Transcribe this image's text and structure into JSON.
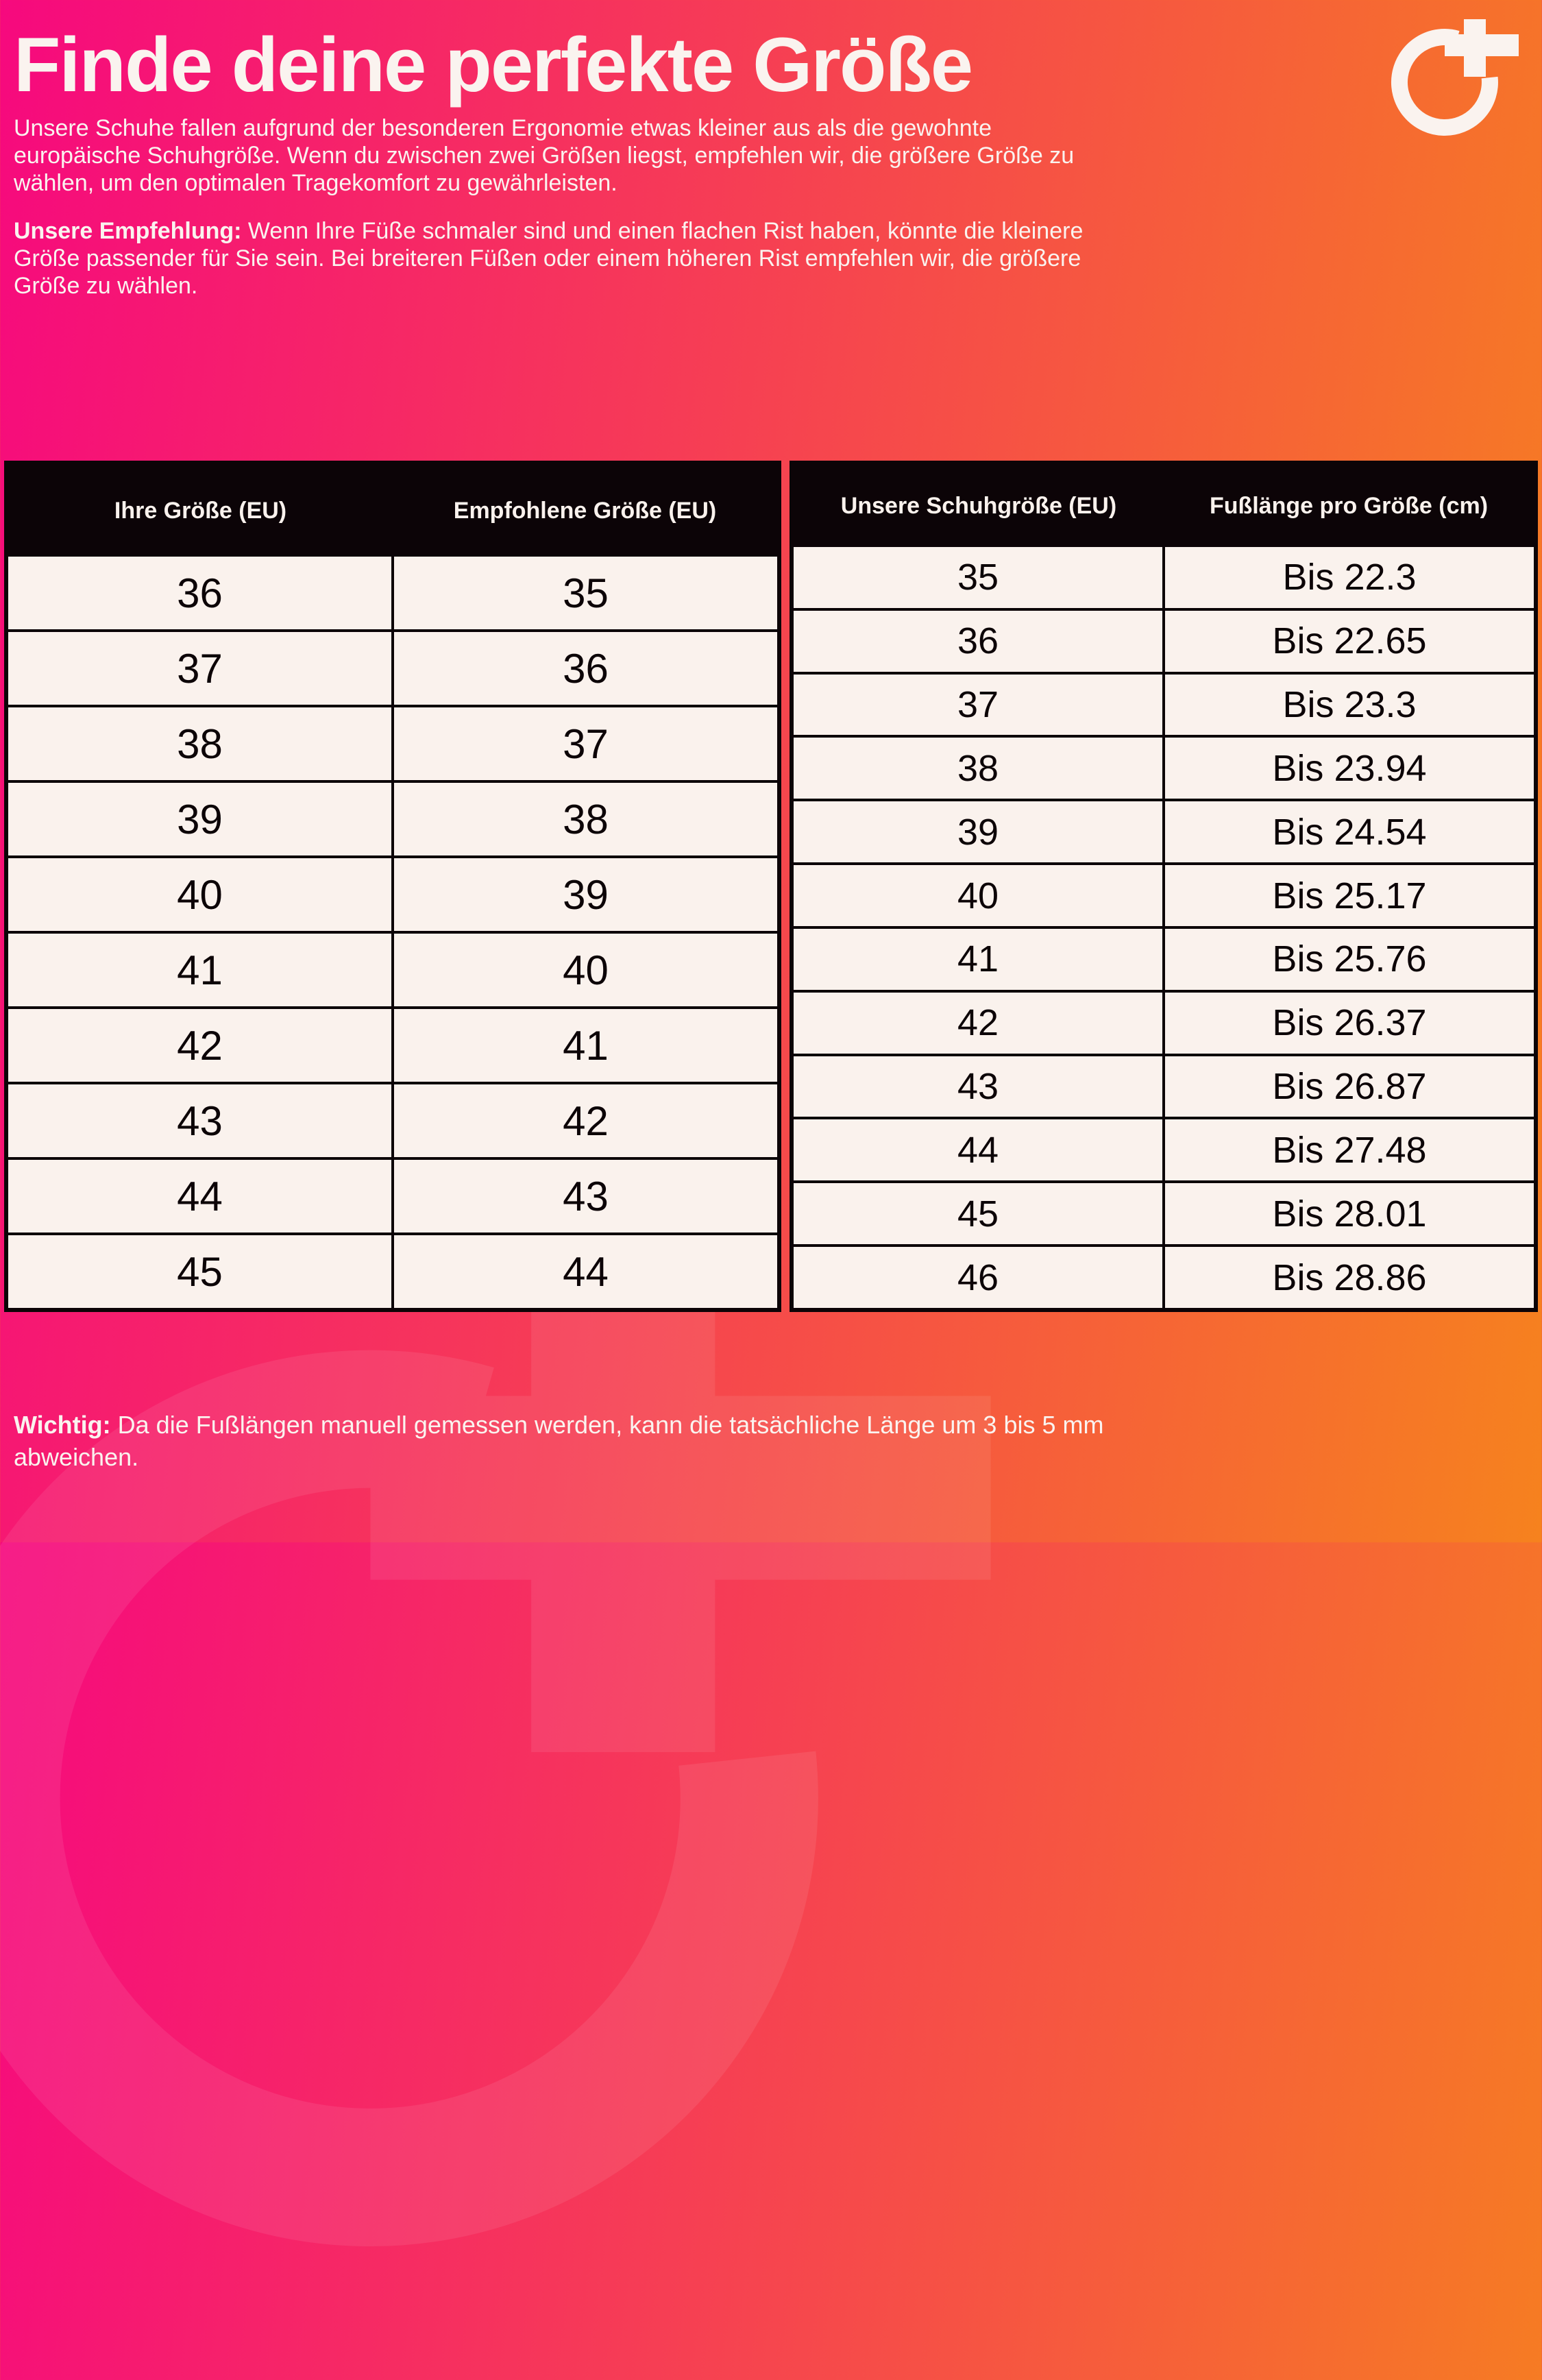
{
  "header": {
    "title": "Finde deine perfekte Größe",
    "logo_name": "o-plus-logo"
  },
  "intro": "Unsere Schuhe fallen aufgrund der besonderen Ergonomie etwas kleiner aus als die gewohnte europäische Schuhgröße. Wenn du zwischen zwei Größen liegst, empfehlen wir, die größere Größe zu wählen, um den optimalen Tragekomfort zu gewährleisten.",
  "recommendation": {
    "label": "Unsere Empfehlung:",
    "text": " Wenn Ihre Füße schmaler sind und einen flachen Rist haben, könnte die kleinere Größe passender für Sie sein. Bei breiteren Füßen oder einem höheren Rist empfehlen wir, die größere Größe zu wählen."
  },
  "tables": {
    "size_conversion": {
      "headers": [
        "Ihre Größe (EU)",
        "Empfohlene Größe (EU)"
      ],
      "rows": [
        [
          "36",
          "35"
        ],
        [
          "37",
          "36"
        ],
        [
          "38",
          "37"
        ],
        [
          "39",
          "38"
        ],
        [
          "40",
          "39"
        ],
        [
          "41",
          "40"
        ],
        [
          "42",
          "41"
        ],
        [
          "43",
          "42"
        ],
        [
          "44",
          "43"
        ],
        [
          "45",
          "44"
        ]
      ]
    },
    "foot_length": {
      "headers": [
        "Unsere Schuhgröße (EU)",
        "Fußlänge pro Größe (cm)"
      ],
      "rows": [
        [
          "35",
          "Bis 22.3"
        ],
        [
          "36",
          "Bis 22.65"
        ],
        [
          "37",
          "Bis 23.3"
        ],
        [
          "38",
          "Bis 23.94"
        ],
        [
          "39",
          "Bis 24.54"
        ],
        [
          "40",
          "Bis 25.17"
        ],
        [
          "41",
          "Bis 25.76"
        ],
        [
          "42",
          "Bis 26.37"
        ],
        [
          "43",
          "Bis 26.87"
        ],
        [
          "44",
          "Bis 27.48"
        ],
        [
          "45",
          "Bis 28.01"
        ],
        [
          "46",
          "Bis 28.86"
        ]
      ]
    }
  },
  "footer": {
    "label": "Wichtig:",
    "text": " Da die Fußlängen manuell gemessen werden, kann die tatsächliche Länge um 3 bis 5 mm abweichen."
  },
  "colors": {
    "gradient_start": "#f6097e",
    "gradient_end": "#f6821e",
    "table_bg": "#faf2ed",
    "table_border": "#0c0407",
    "header_row_bg": "#0c0407",
    "text_light": "#faf3ef"
  }
}
